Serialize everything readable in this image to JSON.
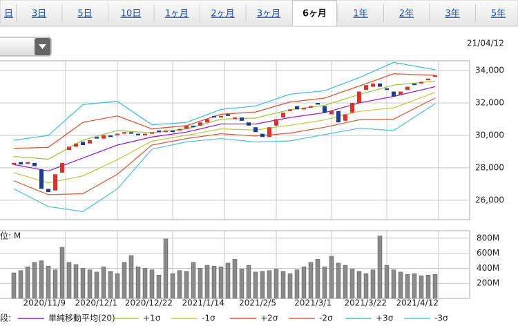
{
  "tabs": {
    "items": [
      "日",
      "3日",
      "5日",
      "10日",
      "1ヶ月",
      "2ヶ月",
      "3ヶ月",
      "6ヶ月",
      "1年",
      "2年",
      "3年",
      "5年"
    ],
    "selected": 7
  },
  "date": "21/04/12",
  "legend_prefix": "段:",
  "chart_data": {
    "type": "candlestick",
    "x": [
      0,
      2,
      4,
      6,
      8,
      10,
      12,
      14,
      16,
      18,
      20,
      22,
      24,
      26,
      28,
      30,
      32,
      34,
      36,
      38,
      40,
      42,
      44,
      46,
      48,
      50,
      52,
      54,
      56,
      58,
      60,
      62,
      64,
      66,
      68,
      70,
      72,
      74,
      76,
      78,
      80,
      82,
      84,
      86,
      88,
      90,
      92,
      94,
      96,
      98,
      100,
      102,
      104,
      106,
      108,
      110,
      112,
      114,
      116,
      118,
      120,
      122
    ],
    "open": [
      28200,
      28350,
      28250,
      28300,
      27900,
      26700,
      26600,
      27700,
      29100,
      29300,
      29600,
      29500,
      29900,
      29800,
      30000,
      30000,
      30100,
      30200,
      30100,
      30000,
      30100,
      30300,
      30200,
      30300,
      30300,
      30400,
      30600,
      30600,
      30800,
      31200,
      31100,
      31300,
      31000,
      31100,
      30800,
      30500,
      30100,
      29900,
      30600,
      31100,
      31500,
      31800,
      31600,
      31700,
      32000,
      31800,
      31300,
      31500,
      30900,
      31400,
      32000,
      32800,
      33000,
      33200,
      32900,
      32700,
      32500,
      32800,
      33200,
      33200,
      33400,
      33600
    ],
    "close": [
      28300,
      28200,
      28350,
      28100,
      26700,
      26500,
      27600,
      28300,
      29300,
      29500,
      29400,
      29700,
      29800,
      30000,
      29900,
      30100,
      30200,
      30100,
      30000,
      30100,
      30200,
      30200,
      30300,
      30200,
      30400,
      30600,
      30500,
      30800,
      31000,
      31100,
      31200,
      31200,
      31100,
      30900,
      30600,
      30200,
      29900,
      30500,
      31000,
      31400,
      31600,
      31600,
      31700,
      31800,
      31900,
      31400,
      31500,
      30800,
      31300,
      32000,
      32700,
      33100,
      33200,
      33000,
      32800,
      32400,
      32700,
      33000,
      33100,
      33300,
      33500,
      33700
    ],
    "up_color": "#e0302a",
    "down_color": "#1a3c9c",
    "series": [
      {
        "name": "単純移動平均(20)",
        "color": "#9b1fd0",
        "x": [
          0,
          10,
          20,
          30,
          40,
          50,
          60,
          70,
          80,
          90,
          100,
          110,
          122
        ],
        "values": [
          28200,
          27800,
          28600,
          29400,
          29900,
          30200,
          30700,
          30700,
          31100,
          31400,
          32000,
          32400,
          33000
        ]
      },
      {
        "name": "+1σ",
        "color": "#9ccc3c",
        "x": [
          0,
          10,
          20,
          30,
          40,
          50,
          60,
          70,
          80,
          90,
          100,
          110,
          122
        ],
        "values": [
          28700,
          28530,
          29700,
          30300,
          30150,
          30400,
          31000,
          31070,
          31580,
          31850,
          32520,
          33100,
          33350
        ]
      },
      {
        "name": "-1σ",
        "color": "#c8cc3c",
        "x": [
          0,
          10,
          20,
          30,
          40,
          50,
          60,
          70,
          80,
          90,
          100,
          110,
          122
        ],
        "values": [
          27700,
          27070,
          27500,
          28500,
          29650,
          30000,
          30400,
          30330,
          30620,
          30950,
          31480,
          31700,
          32650
        ]
      },
      {
        "name": "+2σ",
        "color": "#e8502a",
        "x": [
          0,
          10,
          20,
          30,
          40,
          50,
          60,
          70,
          80,
          90,
          100,
          110,
          122
        ],
        "values": [
          29200,
          29260,
          30800,
          31200,
          30400,
          30600,
          31300,
          31440,
          32060,
          32300,
          33040,
          33800,
          33700
        ]
      },
      {
        "name": "-2σ",
        "color": "#e0603a",
        "x": [
          0,
          10,
          20,
          30,
          40,
          50,
          60,
          70,
          80,
          90,
          100,
          110,
          122
        ],
        "values": [
          27200,
          26340,
          26400,
          27600,
          29400,
          29800,
          30100,
          29960,
          30140,
          30500,
          30960,
          31000,
          32300
        ]
      },
      {
        "name": "+3σ",
        "color": "#3cc4e0",
        "x": [
          0,
          10,
          20,
          30,
          40,
          50,
          60,
          70,
          80,
          90,
          100,
          110,
          122
        ],
        "values": [
          29700,
          29990,
          31900,
          32100,
          30650,
          30800,
          31600,
          31810,
          32540,
          32750,
          33560,
          34500,
          34050
        ]
      },
      {
        "name": "-3σ",
        "color": "#50c8dc",
        "x": [
          0,
          10,
          20,
          30,
          40,
          50,
          60,
          70,
          80,
          90,
          100,
          110,
          122
        ],
        "values": [
          26700,
          25610,
          25300,
          26700,
          29150,
          29600,
          29800,
          29590,
          29660,
          30050,
          30440,
          30300,
          31950
        ]
      }
    ],
    "xlim": [
      -4,
      132
    ],
    "xticks": [
      {
        "value": 15,
        "label": "2020/11/9"
      },
      {
        "value": 30,
        "label": "2020/12/1"
      },
      {
        "value": 46,
        "label": "2020/12/22"
      },
      {
        "value": 61,
        "label": "2021/1/14"
      },
      {
        "value": 76,
        "label": "2021/2/5"
      },
      {
        "value": 92,
        "label": "2021/3/1"
      },
      {
        "value": 108,
        "label": "2021/3/22"
      },
      {
        "value": 123,
        "label": "2021/4/12"
      }
    ],
    "ylim": [
      24800,
      34600
    ],
    "yticks": [
      {
        "value": 26000,
        "label": "26,000"
      },
      {
        "value": 28000,
        "label": "28,000"
      },
      {
        "value": 30000,
        "label": "30,000"
      },
      {
        "value": 32000,
        "label": "32,000"
      },
      {
        "value": 34000,
        "label": "34,000"
      }
    ],
    "grid": true,
    "volume": {
      "unit_label": "位: M",
      "color": "#8a8a8a",
      "values": [
        340,
        370,
        420,
        480,
        500,
        430,
        380,
        680,
        480,
        450,
        400,
        380,
        350,
        420,
        360,
        330,
        480,
        570,
        420,
        400,
        380,
        310,
        790,
        330,
        370,
        360,
        480,
        400,
        440,
        430,
        420,
        470,
        520,
        390,
        440,
        350,
        360,
        370,
        390,
        360,
        330,
        380,
        420,
        480,
        520,
        420,
        560,
        470,
        440,
        390,
        360,
        330,
        380,
        830,
        440,
        380,
        350,
        320,
        330,
        300,
        310,
        320
      ],
      "ylim": [
        0,
        900
      ],
      "yticks": [
        {
          "value": 200,
          "label": "200M"
        },
        {
          "value": 400,
          "label": "400M"
        },
        {
          "value": 600,
          "label": "600M"
        },
        {
          "value": 800,
          "label": "800M"
        }
      ]
    }
  }
}
